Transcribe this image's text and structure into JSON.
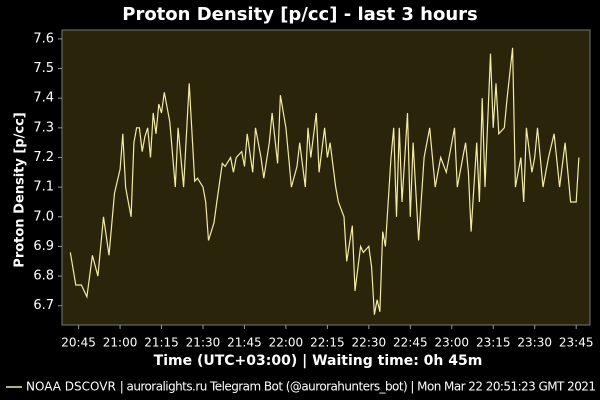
{
  "chart_data": {
    "type": "line",
    "title": "Proton Density [p/cc] - last 3 hours",
    "x_label": "Time (UTC+03:00) | Waiting time: 0h 45m",
    "y_label": "Proton Density [p/cc]",
    "footer": "| auroralights.ru Telegram Bot (@aurorahunters_bot) | Mon Mar 22 20:51:23 GMT 2021",
    "background": "#29240a",
    "xlim": [
      1239,
      1430
    ],
    "ylim": [
      6.635,
      7.63
    ],
    "xticks": [
      {
        "value": 1245,
        "label": "20:45"
      },
      {
        "value": 1260,
        "label": "21:00"
      },
      {
        "value": 1275,
        "label": "21:15"
      },
      {
        "value": 1290,
        "label": "21:30"
      },
      {
        "value": 1305,
        "label": "21:45"
      },
      {
        "value": 1320,
        "label": "22:00"
      },
      {
        "value": 1335,
        "label": "22:15"
      },
      {
        "value": 1350,
        "label": "22:30"
      },
      {
        "value": 1365,
        "label": "22:45"
      },
      {
        "value": 1380,
        "label": "23:00"
      },
      {
        "value": 1395,
        "label": "23:15"
      },
      {
        "value": 1410,
        "label": "23:30"
      },
      {
        "value": 1425,
        "label": "23:45"
      }
    ],
    "yticks": [
      6.7,
      6.8,
      6.9,
      {
        "value": 7,
        "label": "7.0"
      },
      7.1,
      7.2,
      7.3,
      7.4,
      7.5,
      7.6
    ],
    "series": [
      {
        "name": "NOAA DSCOVR",
        "color": "#f3eba6",
        "x": [
          1242,
          1244,
          1246,
          1248,
          1250,
          1252,
          1254,
          1256,
          1258,
          1260,
          1261,
          1262,
          1263,
          1264,
          1265,
          1266,
          1267,
          1268,
          1269,
          1270,
          1271,
          1272,
          1273,
          1274,
          1275,
          1276,
          1278,
          1280,
          1281,
          1283,
          1285,
          1287,
          1288,
          1290,
          1291,
          1292,
          1294,
          1295,
          1297,
          1298,
          1300,
          1301,
          1302,
          1304,
          1305,
          1306,
          1308,
          1309,
          1311,
          1312,
          1314,
          1315,
          1317,
          1318,
          1320,
          1321,
          1322,
          1324,
          1325,
          1327,
          1328,
          1329,
          1331,
          1332,
          1334,
          1335,
          1336,
          1338,
          1339,
          1341,
          1342,
          1344,
          1345,
          1347,
          1348,
          1350,
          1351,
          1352,
          1353,
          1354,
          1355,
          1356,
          1357,
          1358,
          1359,
          1360,
          1361,
          1362,
          1363,
          1364,
          1365,
          1366,
          1368,
          1370,
          1372,
          1374,
          1376,
          1378,
          1380,
          1381,
          1382,
          1384,
          1385,
          1386,
          1387,
          1389,
          1390,
          1391,
          1392,
          1394,
          1395,
          1396,
          1397,
          1399,
          1400,
          1402,
          1403,
          1405,
          1406,
          1407,
          1409,
          1410,
          1411,
          1413,
          1415,
          1417,
          1419,
          1421,
          1423,
          1425,
          1426
        ],
        "values": [
          6.88,
          6.77,
          6.77,
          6.73,
          6.87,
          6.8,
          7.0,
          6.87,
          7.08,
          7.16,
          7.28,
          7.1,
          7.05,
          7.0,
          7.25,
          7.3,
          7.3,
          7.22,
          7.27,
          7.3,
          7.2,
          7.35,
          7.28,
          7.38,
          7.35,
          7.42,
          7.32,
          7.1,
          7.3,
          7.1,
          7.45,
          7.12,
          7.13,
          7.1,
          7.05,
          6.92,
          6.98,
          7.05,
          7.18,
          7.17,
          7.2,
          7.15,
          7.2,
          7.22,
          7.17,
          7.28,
          7.15,
          7.3,
          7.2,
          7.13,
          7.25,
          7.35,
          7.18,
          7.41,
          7.3,
          7.2,
          7.1,
          7.17,
          7.25,
          7.1,
          7.3,
          7.2,
          7.35,
          7.15,
          7.3,
          7.2,
          7.25,
          7.1,
          7.05,
          7.0,
          6.85,
          6.97,
          6.75,
          6.9,
          6.88,
          6.9,
          6.83,
          6.67,
          6.72,
          6.68,
          6.95,
          6.9,
          7.05,
          7.2,
          7.3,
          7.0,
          7.3,
          7.05,
          7.2,
          7.35,
          7.0,
          7.25,
          6.92,
          7.2,
          7.3,
          7.1,
          7.2,
          7.15,
          7.25,
          7.3,
          7.1,
          7.2,
          7.25,
          7.15,
          6.95,
          7.25,
          7.05,
          7.4,
          7.1,
          7.55,
          7.3,
          7.45,
          7.28,
          7.3,
          7.4,
          7.57,
          7.1,
          7.2,
          7.05,
          7.3,
          7.15,
          7.2,
          7.3,
          7.1,
          7.2,
          7.28,
          7.1,
          7.25,
          7.05,
          7.05,
          7.2
        ]
      }
    ]
  }
}
